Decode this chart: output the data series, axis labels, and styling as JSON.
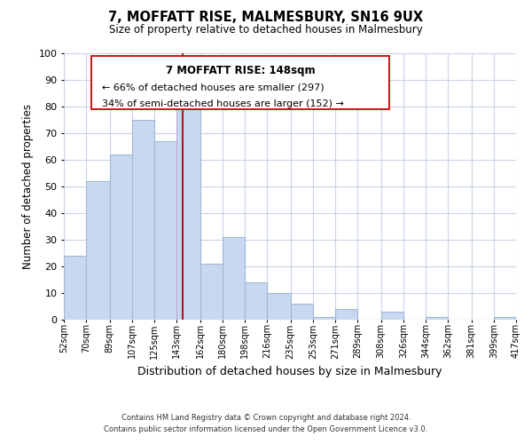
{
  "title": "7, MOFFATT RISE, MALMESBURY, SN16 9UX",
  "subtitle": "Size of property relative to detached houses in Malmesbury",
  "xlabel": "Distribution of detached houses by size in Malmesbury",
  "ylabel": "Number of detached properties",
  "bar_edges": [
    52,
    70,
    89,
    107,
    125,
    143,
    162,
    180,
    198,
    216,
    235,
    253,
    271,
    289,
    308,
    326,
    344,
    362,
    381,
    399,
    417
  ],
  "bar_heights": [
    24,
    52,
    62,
    75,
    67,
    80,
    21,
    31,
    14,
    10,
    6,
    1,
    4,
    0,
    3,
    0,
    1,
    0,
    0,
    1
  ],
  "bar_color": "#c8d8f0",
  "bar_edge_color": "#a0b8d8",
  "vline_x": 148,
  "vline_color": "#a02020",
  "ylim": [
    0,
    100
  ],
  "yticks": [
    0,
    10,
    20,
    30,
    40,
    50,
    60,
    70,
    80,
    90,
    100
  ],
  "tick_labels": [
    "52sqm",
    "70sqm",
    "89sqm",
    "107sqm",
    "125sqm",
    "143sqm",
    "162sqm",
    "180sqm",
    "198sqm",
    "216sqm",
    "235sqm",
    "253sqm",
    "271sqm",
    "289sqm",
    "308sqm",
    "326sqm",
    "344sqm",
    "362sqm",
    "381sqm",
    "399sqm",
    "417sqm"
  ],
  "annotation_title": "7 MOFFATT RISE: 148sqm",
  "annotation_line1": "← 66% of detached houses are smaller (297)",
  "annotation_line2": "34% of semi-detached houses are larger (152) →",
  "footer_line1": "Contains HM Land Registry data © Crown copyright and database right 2024.",
  "footer_line2": "Contains public sector information licensed under the Open Government Licence v3.0.",
  "background_color": "#ffffff",
  "grid_color": "#c8d4e8"
}
